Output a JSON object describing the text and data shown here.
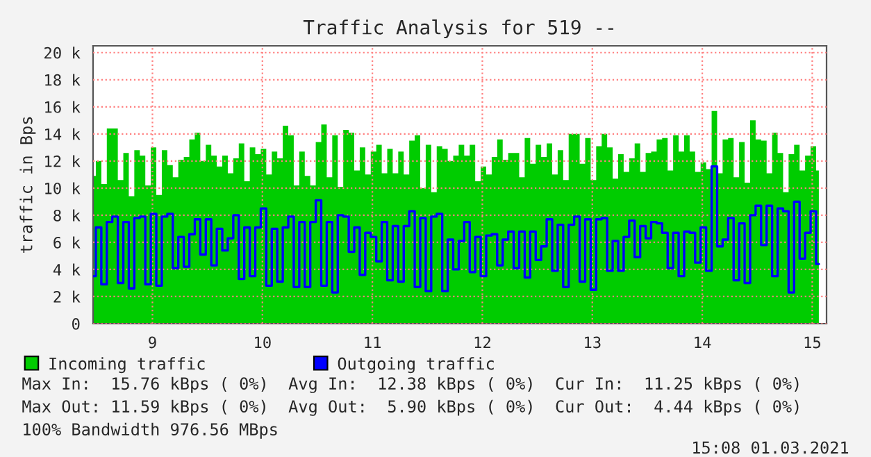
{
  "chart_data": {
    "type": "area",
    "title": "Traffic Analysis for 519 --",
    "ylabel": "traffic in Bps",
    "x": [
      8.46,
      8.51,
      8.56,
      8.61,
      8.66,
      8.71,
      8.76,
      8.81,
      8.86,
      8.91,
      8.96,
      9.01,
      9.06,
      9.11,
      9.16,
      9.21,
      9.26,
      9.31,
      9.36,
      9.41,
      9.46,
      9.51,
      9.56,
      9.61,
      9.66,
      9.71,
      9.76,
      9.81,
      9.86,
      9.91,
      9.96,
      10.01,
      10.06,
      10.11,
      10.16,
      10.21,
      10.26,
      10.31,
      10.36,
      10.41,
      10.46,
      10.51,
      10.56,
      10.61,
      10.66,
      10.71,
      10.76,
      10.81,
      10.86,
      10.91,
      10.96,
      11.01,
      11.06,
      11.11,
      11.16,
      11.21,
      11.26,
      11.31,
      11.36,
      11.41,
      11.46,
      11.51,
      11.56,
      11.61,
      11.66,
      11.71,
      11.76,
      11.81,
      11.86,
      11.91,
      11.96,
      12.01,
      12.06,
      12.11,
      12.16,
      12.21,
      12.26,
      12.31,
      12.36,
      12.41,
      12.46,
      12.51,
      12.56,
      12.61,
      12.66,
      12.71,
      12.76,
      12.81,
      12.86,
      12.91,
      12.96,
      13.01,
      13.06,
      13.11,
      13.16,
      13.21,
      13.26,
      13.31,
      13.36,
      13.41,
      13.46,
      13.51,
      13.56,
      13.61,
      13.66,
      13.71,
      13.76,
      13.81,
      13.86,
      13.91,
      13.96,
      14.01,
      14.06,
      14.11,
      14.16,
      14.21,
      14.26,
      14.31,
      14.36,
      14.41,
      14.46,
      14.51,
      14.56,
      14.61,
      14.66,
      14.71,
      14.76,
      14.81,
      14.86,
      14.91,
      14.96,
      15.01,
      15.06
    ],
    "series": [
      {
        "name": "Incoming traffic",
        "type": "area",
        "color": "#00cc00",
        "values": [
          10900,
          12000,
          10300,
          14400,
          14400,
          10600,
          12600,
          9400,
          12800,
          12400,
          10200,
          13000,
          9500,
          12800,
          11700,
          10800,
          12100,
          12300,
          13600,
          14100,
          12000,
          13200,
          12400,
          11600,
          12400,
          11100,
          12200,
          13300,
          10500,
          13000,
          12500,
          12900,
          11000,
          12700,
          12200,
          14600,
          13900,
          10200,
          12700,
          10900,
          10200,
          13400,
          14700,
          10800,
          13900,
          10100,
          14300,
          14100,
          11300,
          13000,
          11000,
          12700,
          13200,
          11100,
          12900,
          11100,
          12700,
          11000,
          13500,
          13900,
          10000,
          13200,
          9700,
          13100,
          12900,
          12000,
          12400,
          13200,
          12400,
          13200,
          10500,
          11600,
          11000,
          12300,
          13600,
          12100,
          12600,
          12600,
          10800,
          13700,
          11800,
          13200,
          12300,
          13300,
          11000,
          12800,
          10600,
          14000,
          14000,
          11800,
          13700,
          10600,
          13100,
          14000,
          13000,
          10700,
          12500,
          11200,
          12200,
          13300,
          11200,
          12600,
          12700,
          13600,
          13700,
          11300,
          13900,
          12700,
          13900,
          12700,
          11200,
          11900,
          11400,
          15700,
          11100,
          13600,
          13700,
          10800,
          13400,
          10400,
          15000,
          13600,
          13500,
          11100,
          14100,
          12600,
          9700,
          12500,
          13200,
          11300,
          12400,
          13100,
          11300
        ]
      },
      {
        "name": "Outgoing traffic",
        "type": "step",
        "color": "#0000ff",
        "values": [
          3500,
          7100,
          2900,
          7500,
          7900,
          3000,
          7500,
          2600,
          7800,
          7900,
          2900,
          8100,
          2800,
          7900,
          8100,
          4100,
          6400,
          4200,
          6600,
          7700,
          5100,
          7700,
          4300,
          7000,
          5400,
          6300,
          8000,
          3300,
          7100,
          3500,
          7100,
          8500,
          2800,
          7000,
          3100,
          7100,
          7900,
          2700,
          7500,
          2700,
          7500,
          9100,
          2800,
          7500,
          2300,
          8000,
          7900,
          5300,
          7100,
          3600,
          6700,
          6400,
          4600,
          7500,
          3200,
          7200,
          3100,
          7200,
          8300,
          2700,
          7800,
          2400,
          7900,
          8100,
          2400,
          6200,
          4000,
          6100,
          7500,
          3800,
          6400,
          3500,
          6500,
          6600,
          4300,
          6200,
          6800,
          4100,
          6800,
          3400,
          6800,
          4700,
          5700,
          7700,
          3900,
          7300,
          2700,
          7300,
          7900,
          3100,
          7700,
          2500,
          7700,
          7800,
          3900,
          6100,
          3900,
          6400,
          7600,
          4900,
          7200,
          6300,
          7500,
          7400,
          6700,
          4100,
          6700,
          3500,
          6800,
          6700,
          4500,
          7100,
          3900,
          11600,
          5700,
          6200,
          7800,
          3200,
          7400,
          3000,
          8000,
          8700,
          5800,
          8700,
          3500,
          8500,
          8300,
          2300,
          9000,
          4800,
          6700,
          8300,
          4400
        ]
      }
    ],
    "xlim": [
      8.46,
      15.13
    ],
    "xticks": [
      9,
      10,
      11,
      12,
      13,
      14,
      15
    ],
    "ylim": [
      0,
      20500
    ],
    "yticks": [
      {
        "value": 0,
        "label": "0"
      },
      {
        "value": 2000,
        "label": "2 k"
      },
      {
        "value": 4000,
        "label": "4 k"
      },
      {
        "value": 6000,
        "label": "6 k"
      },
      {
        "value": 8000,
        "label": "8 k"
      },
      {
        "value": 10000,
        "label": "10 k"
      },
      {
        "value": 12000,
        "label": "12 k"
      },
      {
        "value": 14000,
        "label": "14 k"
      },
      {
        "value": 16000,
        "label": "16 k"
      },
      {
        "value": 18000,
        "label": "18 k"
      },
      {
        "value": 20000,
        "label": "20 k"
      }
    ],
    "grid": true,
    "legend": "bottom",
    "annotations": [
      "Max In:  15.76 kBps ( 0%)  Avg In:  12.38 kBps ( 0%)  Cur In:  11.25 kBps ( 0%)",
      "Max Out: 11.59 kBps ( 0%)  Avg Out:  5.90 kBps ( 0%)  Cur Out:  4.44 kBps ( 0%)",
      "100% Bandwidth 976.56 MBps",
      "15:08 01.03.2021"
    ]
  }
}
